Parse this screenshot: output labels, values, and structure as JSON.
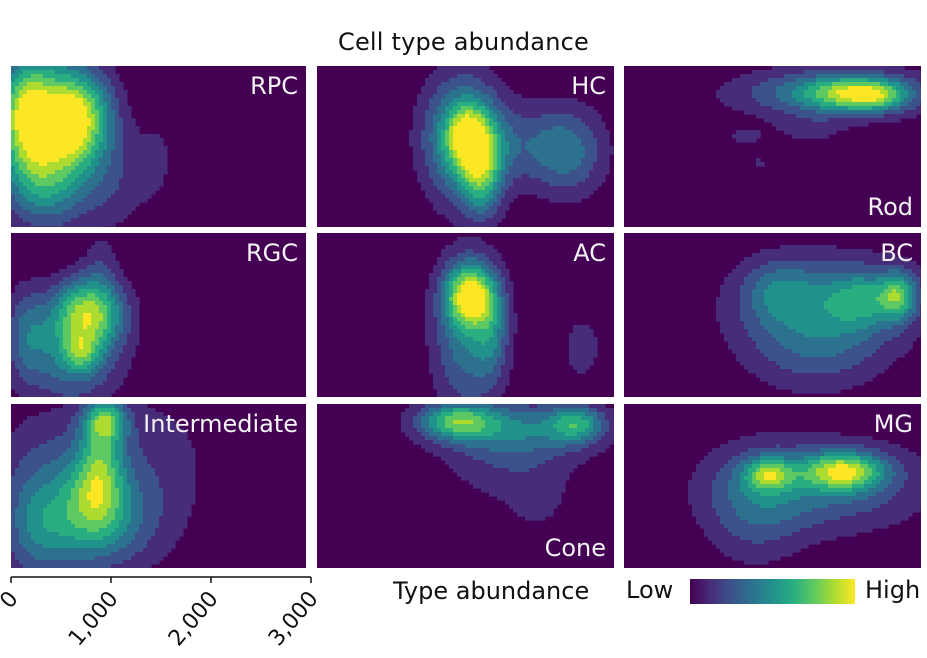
{
  "chart_data": {
    "type": "heatmap",
    "title": "Cell type abundance",
    "grid": "3x3 small multiples, shared x axis",
    "x_ticks": [
      "0",
      "1,000",
      "2,000",
      "3,000"
    ],
    "x_range": [
      0,
      3000
    ],
    "legend": {
      "title": "Type abundance",
      "low_label": "Low",
      "high_label": "High",
      "colormap": "viridis",
      "colors": [
        "#440154",
        "#472c7a",
        "#3b528b",
        "#2c728e",
        "#21918c",
        "#28ae80",
        "#5ec962",
        "#addc30",
        "#fde725"
      ]
    },
    "panels": [
      {
        "label": "RPC",
        "label_pos": "top-right",
        "blobs": [
          {
            "x": 400,
            "y": 0.35,
            "sx": 330,
            "sy": 0.3,
            "w": 0.85
          },
          {
            "x": 150,
            "y": 0.3,
            "sx": 200,
            "sy": 0.22,
            "w": 0.55
          },
          {
            "x": 800,
            "y": 0.3,
            "sx": 180,
            "sy": 0.18,
            "w": 0.4
          },
          {
            "x": 600,
            "y": 0.35,
            "sx": 120,
            "sy": 0.15,
            "w": 0.35
          },
          {
            "x": 300,
            "y": 0.75,
            "sx": 280,
            "sy": 0.2,
            "w": 0.35
          },
          {
            "x": 1000,
            "y": 0.7,
            "sx": 300,
            "sy": 0.25,
            "w": 0.2
          },
          {
            "x": 1500,
            "y": 0.55,
            "sx": 150,
            "sy": 0.25,
            "w": 0.1
          }
        ]
      },
      {
        "label": "HC",
        "label_pos": "top-right",
        "blobs": [
          {
            "x": 1450,
            "y": 0.45,
            "sx": 280,
            "sy": 0.28,
            "w": 0.65
          },
          {
            "x": 1500,
            "y": 0.44,
            "sx": 130,
            "sy": 0.12,
            "w": 0.55
          },
          {
            "x": 1650,
            "y": 0.65,
            "sx": 140,
            "sy": 0.2,
            "w": 0.55
          },
          {
            "x": 2500,
            "y": 0.53,
            "sx": 280,
            "sy": 0.2,
            "w": 0.42
          },
          {
            "x": 1950,
            "y": 0.48,
            "sx": 350,
            "sy": 0.18,
            "w": 0.2
          }
        ]
      },
      {
        "label": "Rod",
        "label_pos": "bottom-right",
        "blobs": [
          {
            "x": 2100,
            "y": 0.17,
            "sx": 700,
            "sy": 0.11,
            "w": 0.5
          },
          {
            "x": 2300,
            "y": 0.17,
            "sx": 320,
            "sy": 0.07,
            "w": 0.55
          },
          {
            "x": 2550,
            "y": 0.19,
            "sx": 200,
            "sy": 0.06,
            "w": 0.25
          },
          {
            "x": 1200,
            "y": 0.44,
            "sx": 150,
            "sy": 0.05,
            "w": 0.15
          },
          {
            "x": 1850,
            "y": 0.4,
            "sx": 250,
            "sy": 0.06,
            "w": 0.15
          },
          {
            "x": 1350,
            "y": 0.6,
            "sx": 70,
            "sy": 0.05,
            "w": 0.14
          }
        ]
      },
      {
        "label": "RGC",
        "label_pos": "top-right",
        "blobs": [
          {
            "x": 780,
            "y": 0.48,
            "sx": 250,
            "sy": 0.15,
            "w": 0.8
          },
          {
            "x": 600,
            "y": 0.75,
            "sx": 350,
            "sy": 0.22,
            "w": 0.45
          },
          {
            "x": 700,
            "y": 0.73,
            "sx": 120,
            "sy": 0.08,
            "w": 0.35
          },
          {
            "x": 150,
            "y": 0.6,
            "sx": 150,
            "sy": 0.2,
            "w": 0.3
          },
          {
            "x": 900,
            "y": 0.15,
            "sx": 120,
            "sy": 0.15,
            "w": 0.15
          }
        ]
      },
      {
        "label": "AC",
        "label_pos": "top-right",
        "blobs": [
          {
            "x": 1530,
            "y": 0.38,
            "sx": 170,
            "sy": 0.13,
            "w": 0.85
          },
          {
            "x": 1500,
            "y": 0.62,
            "sx": 250,
            "sy": 0.35,
            "w": 0.45
          },
          {
            "x": 1750,
            "y": 0.6,
            "sx": 120,
            "sy": 0.2,
            "w": 0.3
          },
          {
            "x": 2650,
            "y": 0.7,
            "sx": 150,
            "sy": 0.15,
            "w": 0.2
          }
        ]
      },
      {
        "label": "BC",
        "label_pos": "top-right",
        "blobs": [
          {
            "x": 2000,
            "y": 0.43,
            "sx": 650,
            "sy": 0.22,
            "w": 0.4
          },
          {
            "x": 2750,
            "y": 0.38,
            "sx": 130,
            "sy": 0.1,
            "w": 0.55
          },
          {
            "x": 2400,
            "y": 0.4,
            "sx": 250,
            "sy": 0.12,
            "w": 0.35
          },
          {
            "x": 1550,
            "y": 0.35,
            "sx": 250,
            "sy": 0.13,
            "w": 0.25
          },
          {
            "x": 1900,
            "y": 0.72,
            "sx": 500,
            "sy": 0.2,
            "w": 0.25
          }
        ]
      },
      {
        "label": "Intermediate",
        "label_pos": "top-right",
        "blobs": [
          {
            "x": 950,
            "y": 0.1,
            "sx": 150,
            "sy": 0.09,
            "w": 0.6
          },
          {
            "x": 800,
            "y": 0.72,
            "sx": 450,
            "sy": 0.22,
            "w": 0.5
          },
          {
            "x": 850,
            "y": 0.55,
            "sx": 200,
            "sy": 0.18,
            "w": 0.4
          },
          {
            "x": 900,
            "y": 0.3,
            "sx": 150,
            "sy": 0.18,
            "w": 0.35
          },
          {
            "x": 250,
            "y": 0.75,
            "sx": 250,
            "sy": 0.25,
            "w": 0.3
          },
          {
            "x": 500,
            "y": 0.3,
            "sx": 500,
            "sy": 0.25,
            "w": 0.2
          },
          {
            "x": 1500,
            "y": 0.35,
            "sx": 450,
            "sy": 0.35,
            "w": 0.15
          }
        ]
      },
      {
        "label": "Cone",
        "label_pos": "bottom-right",
        "blobs": [
          {
            "x": 1400,
            "y": 0.1,
            "sx": 280,
            "sy": 0.08,
            "w": 0.65
          },
          {
            "x": 2000,
            "y": 0.15,
            "sx": 550,
            "sy": 0.12,
            "w": 0.4
          },
          {
            "x": 2600,
            "y": 0.12,
            "sx": 200,
            "sy": 0.08,
            "w": 0.5
          },
          {
            "x": 1950,
            "y": 0.38,
            "sx": 500,
            "sy": 0.18,
            "w": 0.2
          },
          {
            "x": 2200,
            "y": 0.62,
            "sx": 200,
            "sy": 0.12,
            "w": 0.12
          }
        ]
      },
      {
        "label": "MG",
        "label_pos": "top-right",
        "blobs": [
          {
            "x": 2200,
            "y": 0.41,
            "sx": 280,
            "sy": 0.08,
            "w": 0.75
          },
          {
            "x": 1450,
            "y": 0.43,
            "sx": 170,
            "sy": 0.07,
            "w": 0.55
          },
          {
            "x": 1950,
            "y": 0.5,
            "sx": 750,
            "sy": 0.2,
            "w": 0.4
          },
          {
            "x": 1300,
            "y": 0.65,
            "sx": 350,
            "sy": 0.25,
            "w": 0.25
          }
        ]
      }
    ]
  }
}
